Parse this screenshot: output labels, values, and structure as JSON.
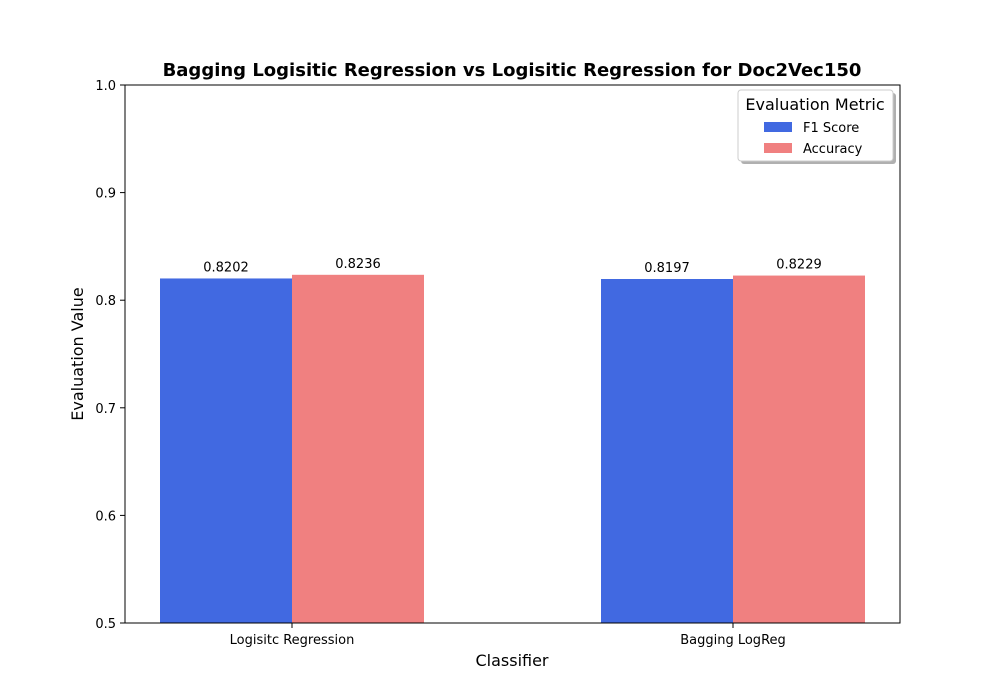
{
  "chart_data": {
    "type": "bar",
    "title": "Bagging Logisitic Regression vs Logisitic Regression for Doc2Vec150",
    "xlabel": "Classifier",
    "ylabel": "Evaluation Value",
    "categories": [
      "Logisitc Regression",
      "Bagging LogReg"
    ],
    "series": [
      {
        "name": "F1 Score",
        "values": [
          0.8202,
          0.8197
        ],
        "labels": [
          "0.8202",
          "0.8197"
        ],
        "color": "#4169e1"
      },
      {
        "name": "Accuracy",
        "values": [
          0.8236,
          0.8229
        ],
        "labels": [
          "0.8236",
          "0.8229"
        ],
        "color": "#f08080"
      }
    ],
    "ylim": [
      0.5,
      1.0
    ],
    "yticks": [
      0.5,
      0.6,
      0.7,
      0.8,
      0.9,
      1.0
    ],
    "ytick_labels": [
      "0.5",
      "0.6",
      "0.7",
      "0.8",
      "0.9",
      "1.0"
    ],
    "grid": false,
    "legend": {
      "title": "Evaluation Metric",
      "placement": "top-right"
    }
  }
}
